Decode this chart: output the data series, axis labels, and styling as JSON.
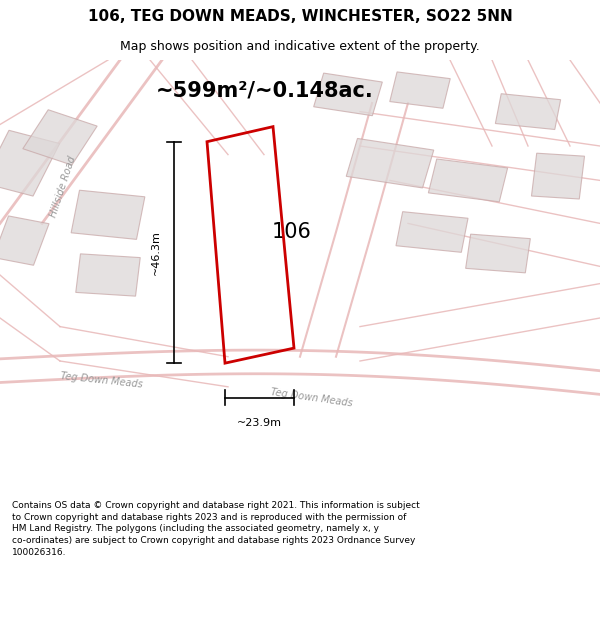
{
  "title_line1": "106, TEG DOWN MEADS, WINCHESTER, SO22 5NN",
  "title_line2": "Map shows position and indicative extent of the property.",
  "footer_text": "Contains OS data © Crown copyright and database right 2021. This information is subject to Crown copyright and database rights 2023 and is reproduced with the permission of HM Land Registry. The polygons (including the associated geometry, namely x, y co-ordinates) are subject to Crown copyright and database rights 2023 Ordnance Survey 100026316.",
  "area_label": "~599m²/~0.148ac.",
  "dim_vertical": "~46.3m",
  "dim_horizontal": "~23.9m",
  "number_label": "106",
  "background_color": "#ffffff",
  "map_bg_color": "#f9f5f5",
  "road_color": "#e8b8b8",
  "building_edge_color": "#c8a8a8",
  "building_face_color": "#ddd8d8",
  "highlight_color": "#cc0000",
  "street_label1": "Hillside Road",
  "street_label2": "Teg Down Meads",
  "street_label3": "Teg Down Meads",
  "text_gray": "#999999",
  "title_fontsize": 11,
  "subtitle_fontsize": 9,
  "area_fontsize": 15,
  "dim_fontsize": 8,
  "number_fontsize": 15,
  "street_fontsize": 7,
  "footer_fontsize": 6.5
}
